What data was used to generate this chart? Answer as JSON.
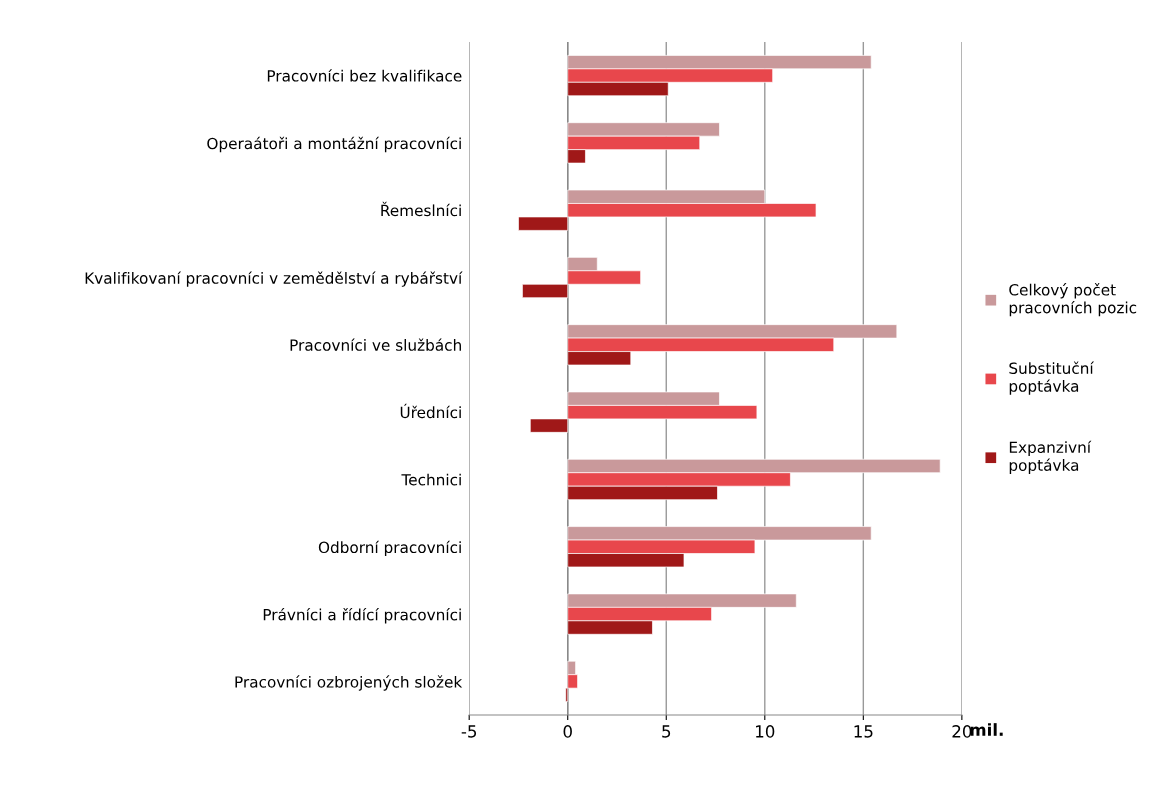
{
  "chart_data": {
    "type": "bar",
    "orientation": "horizontal",
    "categories": [
      "Pracovníci bez kvalifikace",
      "Operaátoři a montážní pracovníci",
      "Řemeslníci",
      "Kvalifikovaní pracovníci v zemědělství a rybářství",
      "Pracovníci ve službách",
      "Úředníci",
      "Technici",
      "Odborní pracovníci",
      "Právníci a řídící pracovníci",
      "Pracovníci ozbrojených složek"
    ],
    "series": [
      {
        "name": "Celkový počet pracovních pozic",
        "color": "#c9999b",
        "values": [
          15.4,
          7.7,
          10.0,
          1.5,
          16.7,
          7.7,
          18.9,
          15.4,
          11.6,
          0.4
        ]
      },
      {
        "name": "Substituční poptávka",
        "color": "#e8474c",
        "values": [
          10.4,
          6.7,
          12.6,
          3.7,
          13.5,
          9.6,
          11.3,
          9.5,
          7.3,
          0.5
        ]
      },
      {
        "name": "Expanzivní poptávka",
        "color": "#a01818",
        "values": [
          5.1,
          0.9,
          -2.5,
          -2.3,
          3.2,
          -1.9,
          7.6,
          5.9,
          4.3,
          -0.1
        ]
      }
    ],
    "xlim": [
      -5,
      20
    ],
    "xticks": [
      -5,
      0,
      5,
      10,
      15,
      20
    ],
    "xlabel": "mil.",
    "grid": "x",
    "legend": "right"
  }
}
